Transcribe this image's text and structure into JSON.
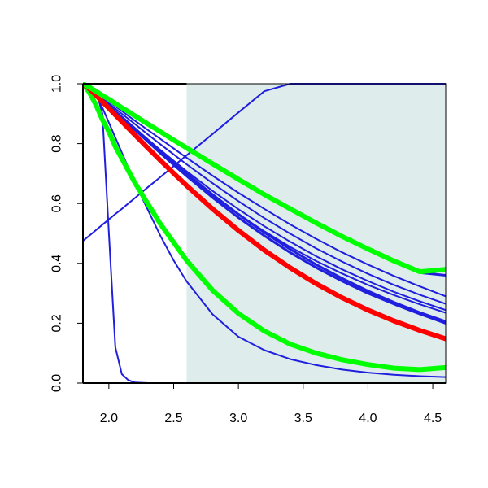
{
  "chart_data": {
    "type": "line",
    "title": "",
    "xlabel": "",
    "ylabel": "",
    "xlim": [
      1.8,
      4.6
    ],
    "ylim": [
      0.0,
      1.0
    ],
    "grid": false,
    "x_ticks": [
      2.0,
      2.5,
      3.0,
      3.5,
      4.0,
      4.5
    ],
    "x_tick_labels": [
      "2.0",
      "2.5",
      "3.0",
      "3.5",
      "4.0",
      "4.5"
    ],
    "y_ticks": [
      0.0,
      0.2,
      0.4,
      0.6,
      0.8,
      1.0
    ],
    "y_tick_labels": [
      "0.0",
      "0.2",
      "0.4",
      "0.6",
      "0.8",
      "1.0"
    ],
    "shaded_region": {
      "x_from": 2.6,
      "x_to": 4.6,
      "color": "#deecec"
    },
    "x": [
      1.8,
      1.85,
      1.9,
      1.95,
      2.0,
      2.05,
      2.1,
      2.15,
      2.2,
      2.3,
      2.4,
      2.5,
      2.6,
      2.8,
      3.0,
      3.2,
      3.4,
      3.6,
      3.8,
      4.0,
      4.2,
      4.4,
      4.6
    ],
    "series": [
      {
        "color": "#1f1fdd",
        "width": 2,
        "values": [
          1.0,
          0.995,
          0.98,
          0.9,
          0.5,
          0.12,
          0.03,
          0.01,
          0.002,
          0.0,
          0.0,
          0.0,
          0.0,
          0.0,
          0.0,
          0.0,
          0.0,
          0.0,
          0.0,
          0.0,
          0.0,
          0.0,
          0.0
        ]
      },
      {
        "color": "#1f1fdd",
        "width": 2,
        "values": [
          0.475,
          0.493,
          0.511,
          0.529,
          0.547,
          0.565,
          0.582,
          0.6,
          0.618,
          0.654,
          0.689,
          0.725,
          0.761,
          0.832,
          0.904,
          0.975,
          1.0,
          1.0,
          1.0,
          1.0,
          1.0,
          1.0,
          1.0
        ]
      },
      {
        "color": "#1f1fdd",
        "width": 2,
        "values": [
          1.0,
          0.99,
          0.96,
          0.92,
          0.87,
          0.82,
          0.77,
          0.72,
          0.67,
          0.58,
          0.49,
          0.41,
          0.34,
          0.23,
          0.155,
          0.11,
          0.08,
          0.06,
          0.045,
          0.035,
          0.028,
          0.023,
          0.02
        ]
      },
      {
        "color": "#1f1fdd",
        "width": 2,
        "values": [
          1.0,
          0.985,
          0.965,
          0.945,
          0.925,
          0.905,
          0.885,
          0.865,
          0.846,
          0.806,
          0.768,
          0.731,
          0.695,
          0.627,
          0.564,
          0.507,
          0.455,
          0.408,
          0.366,
          0.328,
          0.294,
          0.263,
          0.235
        ]
      },
      {
        "color": "#1f1fdd",
        "width": 2,
        "values": [
          1.0,
          0.985,
          0.966,
          0.947,
          0.928,
          0.909,
          0.89,
          0.871,
          0.852,
          0.815,
          0.778,
          0.743,
          0.708,
          0.642,
          0.581,
          0.524,
          0.472,
          0.424,
          0.38,
          0.341,
          0.305,
          0.273,
          0.244
        ]
      },
      {
        "color": "#1f1fdd",
        "width": 2,
        "values": [
          1.0,
          0.986,
          0.969,
          0.952,
          0.934,
          0.917,
          0.9,
          0.883,
          0.866,
          0.831,
          0.797,
          0.764,
          0.731,
          0.668,
          0.608,
          0.551,
          0.499,
          0.45,
          0.406,
          0.365,
          0.328,
          0.295,
          0.265
        ]
      },
      {
        "color": "#1f1fdd",
        "width": 2,
        "values": [
          1.0,
          0.987,
          0.972,
          0.956,
          0.941,
          0.925,
          0.909,
          0.893,
          0.877,
          0.846,
          0.815,
          0.784,
          0.753,
          0.693,
          0.636,
          0.582,
          0.53,
          0.482,
          0.437,
          0.396,
          0.358,
          0.323,
          0.29
        ]
      },
      {
        "color": "#1f1fdd",
        "width": 3,
        "values": [
          1.0,
          0.984,
          0.965,
          0.945,
          0.925,
          0.905,
          0.886,
          0.866,
          0.847,
          0.807,
          0.767,
          0.729,
          0.692,
          0.62,
          0.553,
          0.492,
          0.436,
          0.386,
          0.341,
          0.3,
          0.264,
          0.231,
          0.2
        ]
      },
      {
        "color": "#1f1fdd",
        "width": 3,
        "values": [
          1.0,
          0.984,
          0.965,
          0.946,
          0.927,
          0.908,
          0.889,
          0.87,
          0.851,
          0.812,
          0.774,
          0.737,
          0.701,
          0.63,
          0.564,
          0.503,
          0.447,
          0.396,
          0.35,
          0.308,
          0.27,
          0.236,
          0.206
        ]
      },
      {
        "color": "#1f1fdd",
        "width": 3,
        "values": [
          1.0,
          0.983,
          0.962,
          0.94,
          0.917,
          0.895,
          0.873,
          0.851,
          0.829,
          0.785,
          0.742,
          0.7,
          0.659,
          0.581,
          0.509,
          0.443,
          0.384,
          0.331,
          0.284,
          0.243,
          0.206,
          0.173,
          0.145
        ]
      },
      {
        "color": "#1f1fdd",
        "width": 3,
        "values": [
          1.0,
          0.988,
          0.974,
          0.96,
          0.946,
          0.932,
          0.918,
          0.904,
          0.89,
          0.863,
          0.836,
          0.809,
          0.782,
          0.729,
          0.677,
          0.627,
          0.578,
          0.532,
          0.488,
          0.446,
          0.406,
          0.369,
          0.36
        ]
      },
      {
        "color": "#00ff00",
        "width": 6,
        "values": [
          1.0,
          0.97,
          0.93,
          0.88,
          0.84,
          0.79,
          0.75,
          0.71,
          0.67,
          0.6,
          0.53,
          0.47,
          0.41,
          0.31,
          0.233,
          0.174,
          0.13,
          0.1,
          0.078,
          0.062,
          0.05,
          0.045,
          0.052
        ]
      },
      {
        "color": "#ff0000",
        "width": 6,
        "values": [
          1.0,
          0.983,
          0.962,
          0.94,
          0.918,
          0.896,
          0.874,
          0.852,
          0.83,
          0.786,
          0.743,
          0.701,
          0.66,
          0.582,
          0.51,
          0.444,
          0.385,
          0.332,
          0.285,
          0.244,
          0.208,
          0.176,
          0.148
        ]
      },
      {
        "color": "#00ff00",
        "width": 6,
        "values": [
          1.0,
          0.988,
          0.975,
          0.961,
          0.948,
          0.934,
          0.92,
          0.907,
          0.893,
          0.866,
          0.839,
          0.812,
          0.786,
          0.733,
          0.681,
          0.63,
          0.582,
          0.535,
          0.49,
          0.448,
          0.408,
          0.372,
          0.38
        ]
      }
    ]
  }
}
